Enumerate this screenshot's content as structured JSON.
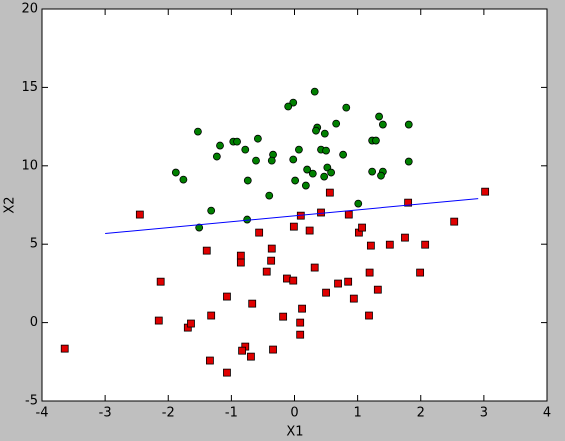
{
  "chart_data": {
    "type": "scatter",
    "xlabel": "X1",
    "ylabel": "X2",
    "xlim": [
      -4,
      4
    ],
    "ylim": [
      -5,
      20
    ],
    "xticks": [
      -4,
      -3,
      -2,
      -1,
      0,
      1,
      2,
      3,
      4
    ],
    "yticks": [
      -5,
      0,
      5,
      10,
      15,
      20
    ],
    "series": [
      {
        "type": "scatter",
        "marker": "circle",
        "color": "#008000",
        "x": [
          0.32,
          -0.02,
          -0.1,
          0.82,
          1.34,
          1.4,
          1.81,
          0.66,
          0.36,
          0.34,
          0.48,
          -1.53,
          -0.58,
          -0.97,
          -0.91,
          -1.18,
          1.23,
          1.29,
          0.07,
          0.42,
          0.5,
          -0.78,
          0.77,
          -0.34,
          -1.23,
          -0.36,
          -0.61,
          -0.02,
          1.81,
          0.2,
          0.52,
          0.58,
          0.29,
          1.4,
          1.23,
          1.37,
          -1.88,
          -1.76,
          0.01,
          -0.74,
          0.47,
          0.18,
          -0.4,
          1.01,
          -1.32,
          -0.75,
          -1.51
        ],
        "values": [
          14.73,
          14.03,
          13.78,
          13.71,
          13.14,
          12.63,
          12.63,
          12.69,
          12.44,
          12.24,
          12.05,
          12.18,
          11.73,
          11.54,
          11.54,
          11.29,
          11.61,
          11.61,
          11.03,
          11.03,
          10.97,
          11.03,
          10.71,
          10.71,
          10.59,
          10.33,
          10.33,
          10.4,
          10.27,
          9.76,
          9.89,
          9.57,
          9.5,
          9.63,
          9.63,
          9.37,
          9.57,
          9.12,
          9.06,
          9.06,
          9.31,
          8.74,
          8.1,
          7.59,
          7.14,
          6.57,
          6.06
        ]
      },
      {
        "type": "scatter",
        "marker": "square",
        "color": "#e00000",
        "x": [
          -3.64,
          -2.45,
          -2.12,
          -2.15,
          -1.69,
          -1.64,
          -1.39,
          -1.32,
          -1.34,
          -1.07,
          -1.07,
          -0.85,
          -0.85,
          -0.78,
          -0.83,
          -0.67,
          -0.69,
          -0.56,
          -0.44,
          -0.37,
          -0.36,
          -0.34,
          -0.18,
          -0.12,
          -0.02,
          -0.01,
          0.1,
          0.24,
          0.09,
          0.12,
          0.09,
          0.32,
          0.42,
          0.5,
          0.56,
          0.69,
          0.85,
          0.86,
          0.94,
          1.02,
          1.07,
          1.18,
          1.19,
          1.21,
          1.32,
          1.51,
          1.75,
          1.8,
          1.99,
          2.07,
          2.53,
          3.02
        ],
        "values": [
          -1.66,
          6.89,
          2.61,
          0.13,
          -0.32,
          -0.06,
          4.59,
          0.45,
          -2.42,
          1.66,
          -3.19,
          4.27,
          3.83,
          -1.53,
          -1.79,
          1.21,
          -2.17,
          5.74,
          3.25,
          3.95,
          4.72,
          -1.72,
          0.38,
          2.81,
          2.68,
          6.12,
          6.82,
          5.87,
          0,
          0.89,
          -0.77,
          3.51,
          7.02,
          1.91,
          8.29,
          2.49,
          2.61,
          6.89,
          1.53,
          5.74,
          6.06,
          0.45,
          3.19,
          4.91,
          2.1,
          4.97,
          5.42,
          7.65,
          3.19,
          4.97,
          6.44,
          8.35
        ]
      },
      {
        "type": "line",
        "color": "#0000ff",
        "x": [
          -3,
          2.91
        ],
        "values": [
          5.68,
          7.91
        ]
      }
    ]
  }
}
